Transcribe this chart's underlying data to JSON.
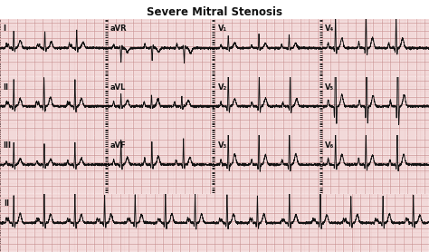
{
  "title": "Severe Mitral Stenosis",
  "bg_color": "#f8e8e8",
  "grid_minor_color": "#e8b8b8",
  "grid_major_color": "#c89090",
  "ecg_color": "#111111",
  "title_bg": "#f0f0f0",
  "row_labels": [
    [
      "I",
      "aVR",
      "V₁",
      "V₄"
    ],
    [
      "II",
      "aVL",
      "V₂",
      "V₅"
    ],
    [
      "III",
      "aVF",
      "V₃",
      "V₆"
    ],
    [
      "II",
      "",
      "",
      ""
    ]
  ],
  "n_rows": 4,
  "figsize": [
    4.74,
    2.78
  ],
  "dpi": 100
}
